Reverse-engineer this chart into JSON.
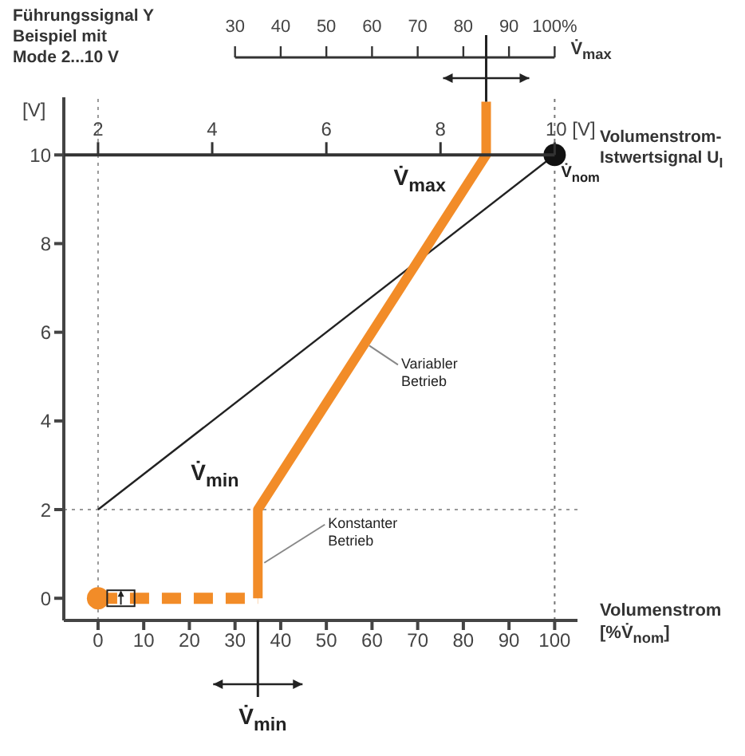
{
  "chart_data": {
    "type": "line",
    "title": "Führungssignal Y",
    "subtitle": "Beispiel mit Mode 2...10 V",
    "ylabel": "[V]",
    "xlabel": "Volumenstrom [%V̇$_{nom}$]",
    "x2label": "V̇$_{max}$",
    "xlim": [
      -7.5,
      105
    ],
    "xticks": [
      0,
      10,
      20,
      30,
      40,
      50,
      60,
      70,
      80,
      90,
      100
    ],
    "ylim": [
      -0.5,
      11.3
    ],
    "yticks": [
      0,
      2,
      4,
      6,
      8,
      10
    ],
    "x2lim": [
      -7.5,
      105
    ],
    "x2ticks": [
      30,
      40,
      50,
      60,
      70,
      80,
      90,
      {
        "value": 100,
        "label": "100%"
      }
    ],
    "series": [
      {
        "color": "#222222",
        "x": [
          0,
          100
        ],
        "values": [
          2,
          10
        ],
        "marker": "none",
        "line_style": "solid"
      },
      {
        "color": "#f28c28",
        "x": [
          35,
          35,
          85,
          85
        ],
        "values": [
          0,
          2,
          10,
          11.2
        ],
        "marker": "none",
        "line_style": "solid"
      },
      {
        "color": "#f28c28",
        "x": [
          0,
          35
        ],
        "values": [
          0,
          0
        ],
        "marker": "none",
        "line_style": "dashed"
      },
      {
        "type": "scatter",
        "color": "#f28c28",
        "x": [
          0
        ],
        "values": [
          0
        ],
        "marker": "circle"
      },
      {
        "type": "scatter",
        "color": "#111111",
        "x": [
          100
        ],
        "values": [
          10
        ],
        "marker": "circle"
      }
    ],
    "ref_lines": [
      {
        "axis": "x",
        "value": 0,
        "color": "#999999",
        "line_style": "dotted"
      },
      {
        "axis": "x",
        "value": 100,
        "color": "#777777",
        "line_style": "dotted"
      },
      {
        "axis": "y",
        "value": 2,
        "color": "#999999",
        "line_style": "dotted"
      },
      {
        "axis": "y",
        "value": 10,
        "color": "#333333",
        "line_style": "solid",
        "label": "Volumenstrom-Istwertsignal U$_{I}$"
      }
    ],
    "annotations": [
      {
        "text": "V̇$_{max}$",
        "x": 85,
        "y": 10
      },
      {
        "text": "V̇$_{nom}$",
        "x": 100,
        "y": 10
      },
      {
        "text": "V̇$_{min}$",
        "x": 35,
        "y": 2
      },
      {
        "text": "V̇$_{min}$",
        "x": 35
      },
      {
        "text": "Variabler Betrieb",
        "x": 58,
        "y": 5.7
      },
      {
        "text": "Konstanter Betrieb",
        "x": 35,
        "y": 0.8
      },
      {
        "text": "2",
        "x": 0,
        "y": 10
      },
      {
        "text": "4",
        "x": 25,
        "y": 10
      },
      {
        "text": "6",
        "x": 50,
        "y": 10
      },
      {
        "text": "8",
        "x": 75,
        "y": 10
      },
      {
        "text": "10 [V]",
        "x": 100,
        "y": 10
      }
    ]
  }
}
